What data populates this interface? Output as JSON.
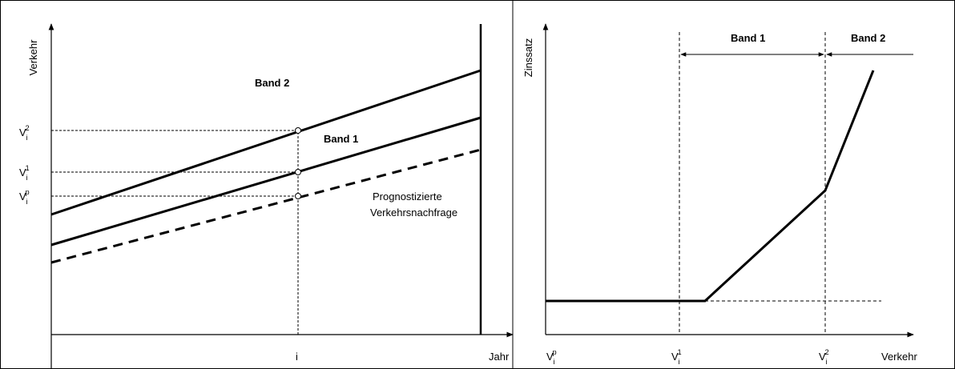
{
  "left": {
    "y_label": "Verkehr",
    "x_label": "Jahr",
    "x_tick": "i",
    "levels": [
      {
        "base": "V",
        "sub": "i",
        "sup": "2"
      },
      {
        "base": "V",
        "sub": "i",
        "sup": "1"
      },
      {
        "base": "V",
        "sub": "i",
        "sup": "p"
      }
    ],
    "band_upper": "Band 2",
    "band_lower": "Band 1",
    "forecast": [
      "Prognostizierte",
      "Verkehrsnachfrage"
    ]
  },
  "right": {
    "y_label": "Zinssatz",
    "x_label": "Verkehr",
    "ticks": [
      {
        "base": "V",
        "sub": "i",
        "sup": "p"
      },
      {
        "base": "V",
        "sub": "i",
        "sup": "1"
      },
      {
        "base": "V",
        "sub": "i",
        "sup": "2"
      }
    ],
    "bands": [
      "Band 1",
      "Band 2"
    ]
  }
}
